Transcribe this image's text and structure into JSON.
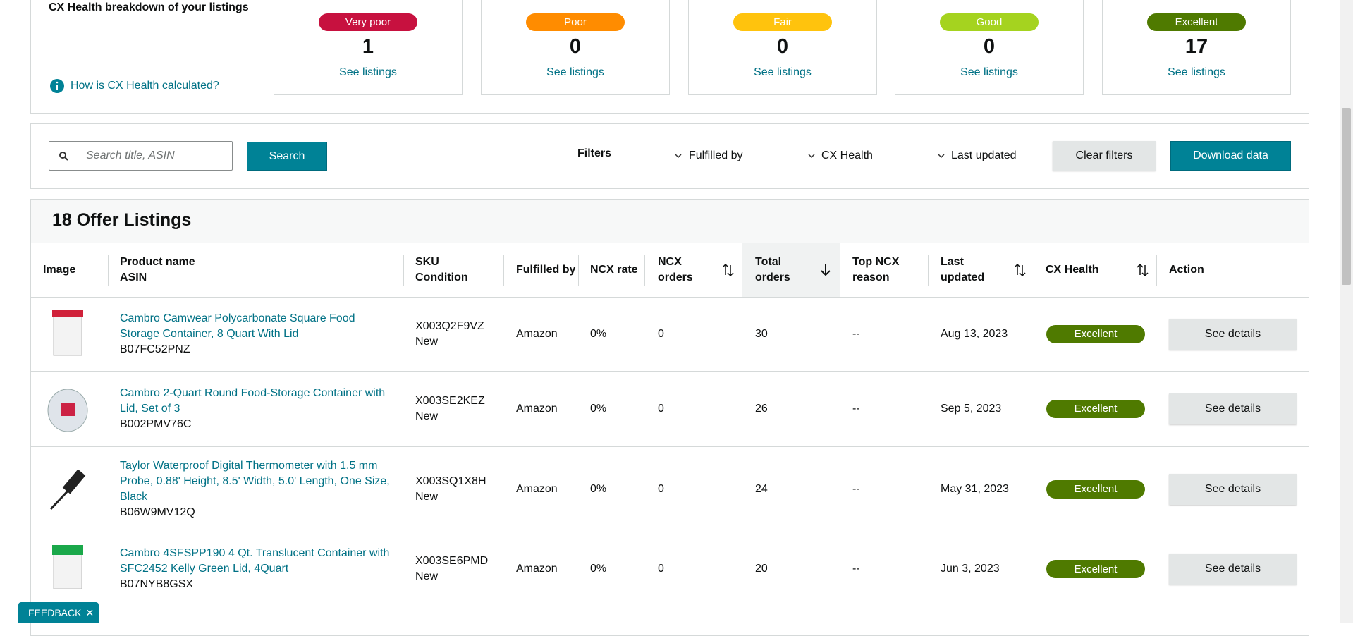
{
  "breakdown": {
    "title": "CX Health breakdown of your listings",
    "help_link": "How is CX Health calculated?",
    "cards": [
      {
        "label": "Very poor",
        "count": "1",
        "link": "See listings"
      },
      {
        "label": "Poor",
        "count": "0",
        "link": "See listings"
      },
      {
        "label": "Fair",
        "count": "0",
        "link": "See listings"
      },
      {
        "label": "Good",
        "count": "0",
        "link": "See listings"
      },
      {
        "label": "Excellent",
        "count": "17",
        "link": "See listings"
      }
    ]
  },
  "search": {
    "placeholder": "Search title, ASIN",
    "button": "Search",
    "filters_label": "Filters",
    "filters": [
      "Fulfilled by",
      "CX Health",
      "Last updated"
    ],
    "clear": "Clear filters",
    "download": "Download data"
  },
  "listings": {
    "title": "18 Offer Listings",
    "headers": [
      [
        "Image"
      ],
      [
        "Product name",
        "ASIN"
      ],
      [
        "SKU",
        "Condition"
      ],
      [
        "Fulfilled by"
      ],
      [
        "NCX rate"
      ],
      [
        "NCX",
        "orders"
      ],
      [
        "Total",
        "orders"
      ],
      [
        "Top NCX",
        "reason"
      ],
      [
        "Last",
        "updated"
      ],
      [
        "CX Health"
      ],
      [
        "Action"
      ]
    ],
    "rows": [
      {
        "name": "Cambro Camwear Polycarbonate Square Food Storage Container, 8 Quart With Lid",
        "asin": "B07FC52PNZ",
        "sku": "X003Q2F9VZ",
        "condition": "New",
        "fulfilled": "Amazon",
        "ncx_rate": "0%",
        "ncx_orders": "0",
        "total_orders": "30",
        "reason": "--",
        "updated": "Aug 13, 2023",
        "health": "Excellent",
        "action": "See details"
      },
      {
        "name": "Cambro 2-Quart Round Food-Storage Container with Lid, Set of 3",
        "asin": "B002PMV76C",
        "sku": "X003SE2KEZ",
        "condition": "New",
        "fulfilled": "Amazon",
        "ncx_rate": "0%",
        "ncx_orders": "0",
        "total_orders": "26",
        "reason": "--",
        "updated": "Sep 5, 2023",
        "health": "Excellent",
        "action": "See details"
      },
      {
        "name": "Taylor Waterproof Digital Thermometer with 1.5 mm Probe, 0.88' Height, 8.5' Width, 5.0' Length, One Size, Black",
        "asin": "B06W9MV12Q",
        "sku": "X003SQ1X8H",
        "condition": "New",
        "fulfilled": "Amazon",
        "ncx_rate": "0%",
        "ncx_orders": "0",
        "total_orders": "24",
        "reason": "--",
        "updated": "May 31, 2023",
        "health": "Excellent",
        "action": "See details"
      },
      {
        "name": "Cambro 4SFSPP190 4 Qt. Translucent Container with SFC2452 Kelly Green Lid, 4Quart",
        "asin": "B07NYB8GSX",
        "sku": "X003SE6PMD",
        "condition": "New",
        "fulfilled": "Amazon",
        "ncx_rate": "0%",
        "ncx_orders": "0",
        "total_orders": "20",
        "reason": "--",
        "updated": "Jun 3, 2023",
        "health": "Excellent",
        "action": "See details"
      }
    ]
  },
  "feedback": "FEEDBACK"
}
